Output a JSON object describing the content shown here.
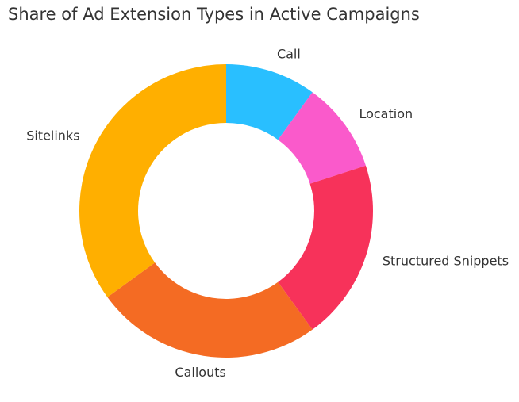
{
  "chart_data": {
    "type": "pie",
    "style": "donut",
    "title": "Share of Ad Extension Types in Active Campaigns",
    "categories": [
      "Call",
      "Location",
      "Structured Snippets",
      "Callouts",
      "Sitelinks"
    ],
    "values": [
      10,
      10,
      20,
      25,
      35
    ],
    "colors": [
      "#29BFFF",
      "#FA5ACB",
      "#F7325A",
      "#F46B23",
      "#FFAF00"
    ],
    "start": "top",
    "direction": "clockwise",
    "legend": "none"
  }
}
